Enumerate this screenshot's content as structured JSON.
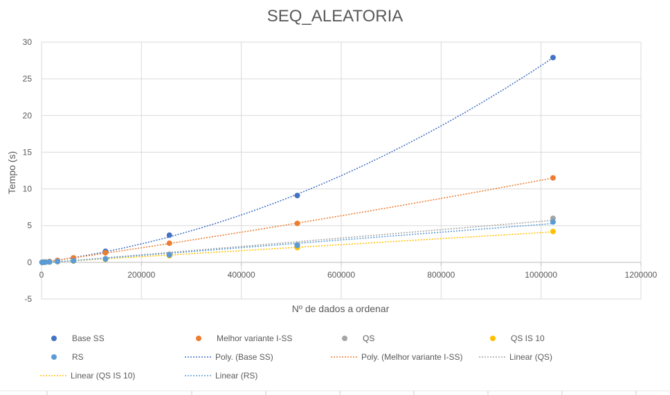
{
  "chart_data": {
    "type": "scatter",
    "title": "SEQ_ALEATORIA",
    "xlabel": "Nº de dados a ordenar",
    "ylabel": "Tempo (s)",
    "xlim": [
      0,
      1200000
    ],
    "ylim": [
      -5,
      30
    ],
    "x_ticks": [
      "0",
      "200000",
      "400000",
      "600000",
      "800000",
      "1000000",
      "1200000"
    ],
    "y_ticks": [
      "-5",
      "0",
      "5",
      "10",
      "15",
      "20",
      "25",
      "30"
    ],
    "grid": true,
    "legend_position": "bottom",
    "series": [
      {
        "name": "Base SS",
        "color": "#4472C4",
        "x": [
          1000,
          2000,
          4000,
          8000,
          16000,
          32000,
          64000,
          128000,
          256000,
          512000,
          1024000
        ],
        "y": [
          0.0,
          0.01,
          0.02,
          0.05,
          0.1,
          0.25,
          0.6,
          1.5,
          3.7,
          9.1,
          27.9
        ]
      },
      {
        "name": "Melhor variante I-SS",
        "color": "#ED7D31",
        "x": [
          1000,
          2000,
          4000,
          8000,
          16000,
          32000,
          64000,
          128000,
          256000,
          512000,
          1024000
        ],
        "y": [
          0.0,
          0.01,
          0.02,
          0.05,
          0.1,
          0.25,
          0.6,
          1.3,
          2.6,
          5.3,
          11.5
        ]
      },
      {
        "name": "QS",
        "color": "#A5A5A5",
        "x": [
          1000,
          2000,
          4000,
          8000,
          16000,
          32000,
          64000,
          128000,
          256000,
          512000,
          1024000
        ],
        "y": [
          0.0,
          0.0,
          0.01,
          0.02,
          0.05,
          0.1,
          0.2,
          0.5,
          1.1,
          2.4,
          6.0
        ]
      },
      {
        "name": "QS IS 10",
        "color": "#FFC000",
        "x": [
          1000,
          2000,
          4000,
          8000,
          16000,
          32000,
          64000,
          128000,
          256000,
          512000,
          1024000
        ],
        "y": [
          0.0,
          0.0,
          0.01,
          0.02,
          0.04,
          0.08,
          0.17,
          0.4,
          0.9,
          2.0,
          4.2
        ]
      },
      {
        "name": "RS",
        "color": "#5B9BD5",
        "x": [
          1000,
          2000,
          4000,
          8000,
          16000,
          32000,
          64000,
          128000,
          256000,
          512000,
          1024000
        ],
        "y": [
          0.0,
          0.0,
          0.01,
          0.02,
          0.05,
          0.1,
          0.2,
          0.45,
          1.0,
          2.3,
          5.5
        ]
      }
    ],
    "trendlines": [
      {
        "name": "Poly. (Base SS)",
        "type": "polynomial",
        "series": "Base SS",
        "color": "#4472C4"
      },
      {
        "name": "Poly. (Melhor variante I-SS)",
        "type": "polynomial",
        "series": "Melhor variante I-SS",
        "color": "#ED7D31"
      },
      {
        "name": "Linear (QS)",
        "type": "linear",
        "series": "QS",
        "color": "#A5A5A5"
      },
      {
        "name": "Linear (QS IS 10)",
        "type": "linear",
        "series": "QS IS 10",
        "color": "#FFC000"
      },
      {
        "name": "Linear (RS)",
        "type": "linear",
        "series": "RS",
        "color": "#5B9BD5"
      }
    ]
  }
}
